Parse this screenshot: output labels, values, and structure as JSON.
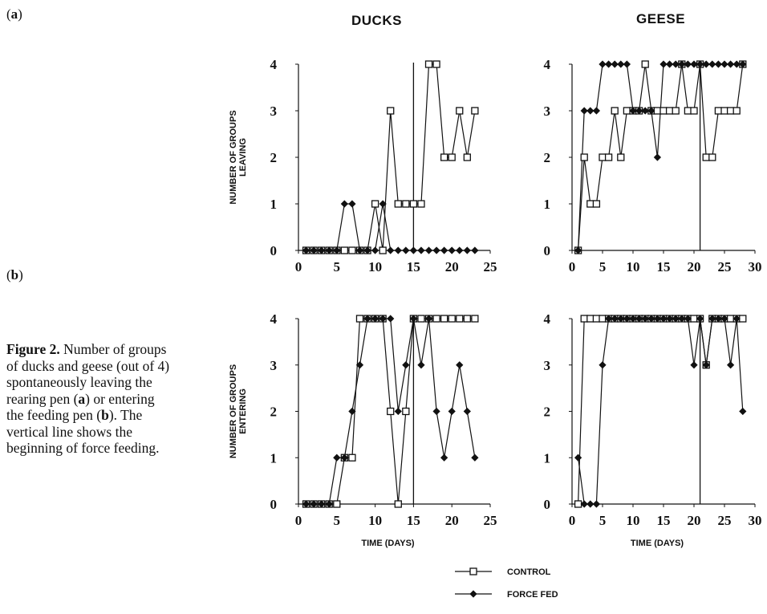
{
  "panel_labels": {
    "a": "a",
    "b": "b"
  },
  "column_titles": {
    "ducks": "DUCKS",
    "geese": "GEESE"
  },
  "caption": {
    "label": "Figure 2.",
    "text_1": " Number of groups of ducks and geese (out of 4) spontaneously leaving the rearing pen (",
    "a": "a",
    "text_2": ") or entering the feeding pen (",
    "b": "b",
    "text_3": "). The vertical line shows the beginning of force feeding."
  },
  "legend": [
    {
      "name": "CONTROL",
      "marker": "open-square"
    },
    {
      "name": "FORCE FED",
      "marker": "filled-diamond"
    }
  ],
  "colors": {
    "ink": "#111111",
    "marker_fill_open": "#ffffff"
  },
  "chart_data": [
    {
      "id": "ducks-leaving",
      "type": "line",
      "ylabel": "NUMBER OF GROUPS LEAVING",
      "xlabel": "",
      "xlim": [
        0,
        25
      ],
      "ylim": [
        0,
        4
      ],
      "xticks": [
        0,
        5,
        10,
        15,
        20,
        25
      ],
      "yticks": [
        0,
        1,
        2,
        3,
        4
      ],
      "start_force_feeding": 15,
      "series": [
        {
          "name": "CONTROL",
          "x": [
            1,
            2,
            3,
            4,
            5,
            6,
            7,
            8,
            9,
            10,
            11,
            12,
            13,
            14,
            15,
            16,
            17,
            18,
            19,
            20,
            21,
            22,
            23
          ],
          "y": [
            0,
            0,
            0,
            0,
            0,
            0,
            0,
            0,
            0,
            1,
            0,
            3,
            1,
            1,
            1,
            1,
            4,
            4,
            2,
            2,
            3,
            2,
            3
          ]
        },
        {
          "name": "FORCE FED",
          "x": [
            1,
            2,
            3,
            4,
            5,
            6,
            7,
            8,
            9,
            10,
            11,
            12,
            13,
            14,
            15,
            16,
            17,
            18,
            19,
            20,
            21,
            22,
            23
          ],
          "y": [
            0,
            0,
            0,
            0,
            0,
            1,
            1,
            0,
            0,
            0,
            1,
            0,
            0,
            0,
            0,
            0,
            0,
            0,
            0,
            0,
            0,
            0,
            0
          ]
        }
      ]
    },
    {
      "id": "geese-leaving",
      "type": "line",
      "ylabel": "",
      "xlabel": "",
      "xlim": [
        0,
        30
      ],
      "ylim": [
        0,
        4
      ],
      "xticks": [
        0,
        5,
        10,
        15,
        20,
        25,
        30
      ],
      "yticks": [
        0,
        1,
        2,
        3,
        4
      ],
      "start_force_feeding": 21,
      "series": [
        {
          "name": "CONTROL",
          "x": [
            1,
            2,
            3,
            4,
            5,
            6,
            7,
            8,
            9,
            10,
            11,
            12,
            13,
            14,
            15,
            16,
            17,
            18,
            19,
            20,
            21,
            22,
            23,
            24,
            25,
            26,
            27,
            28
          ],
          "y": [
            0,
            2,
            1,
            1,
            2,
            2,
            3,
            2,
            3,
            3,
            3,
            4,
            3,
            3,
            3,
            3,
            3,
            4,
            3,
            3,
            4,
            2,
            2,
            3,
            3,
            3,
            3,
            4
          ]
        },
        {
          "name": "FORCE FED",
          "x": [
            1,
            2,
            3,
            4,
            5,
            6,
            7,
            8,
            9,
            10,
            11,
            12,
            13,
            14,
            15,
            16,
            17,
            18,
            19,
            20,
            21,
            22,
            23,
            24,
            25,
            26,
            27,
            28
          ],
          "y": [
            0,
            3,
            3,
            3,
            4,
            4,
            4,
            4,
            4,
            3,
            3,
            3,
            3,
            2,
            4,
            4,
            4,
            4,
            4,
            4,
            4,
            4,
            4,
            4,
            4,
            4,
            4,
            4
          ]
        }
      ]
    },
    {
      "id": "ducks-entering",
      "type": "line",
      "ylabel": "NUMBER OF GROUPS ENTERING",
      "xlabel": "TIME (DAYS)",
      "xlim": [
        0,
        25
      ],
      "ylim": [
        0,
        4
      ],
      "xticks": [
        0,
        5,
        10,
        15,
        20,
        25
      ],
      "yticks": [
        0,
        1,
        2,
        3,
        4
      ],
      "start_force_feeding": 15,
      "series": [
        {
          "name": "CONTROL",
          "x": [
            1,
            2,
            3,
            4,
            5,
            6,
            7,
            8,
            9,
            10,
            11,
            12,
            13,
            14,
            15,
            16,
            17,
            18,
            19,
            20,
            21,
            22,
            23
          ],
          "y": [
            0,
            0,
            0,
            0,
            0,
            1,
            1,
            4,
            4,
            4,
            4,
            2,
            0,
            2,
            4,
            4,
            4,
            4,
            4,
            4,
            4,
            4,
            4
          ]
        },
        {
          "name": "FORCE FED",
          "x": [
            1,
            2,
            3,
            4,
            5,
            6,
            7,
            8,
            9,
            10,
            11,
            12,
            13,
            14,
            15,
            16,
            17,
            18,
            19,
            20,
            21,
            22,
            23
          ],
          "y": [
            0,
            0,
            0,
            0,
            1,
            1,
            2,
            3,
            4,
            4,
            4,
            4,
            2,
            3,
            4,
            3,
            4,
            2,
            1,
            2,
            3,
            2,
            1
          ]
        }
      ]
    },
    {
      "id": "geese-entering",
      "type": "line",
      "ylabel": "",
      "xlabel": "TIME (DAYS)",
      "xlim": [
        0,
        30
      ],
      "ylim": [
        0,
        4
      ],
      "xticks": [
        0,
        5,
        10,
        15,
        20,
        25,
        30
      ],
      "yticks": [
        0,
        1,
        2,
        3,
        4
      ],
      "start_force_feeding": 21,
      "series": [
        {
          "name": "CONTROL",
          "x": [
            1,
            2,
            3,
            4,
            5,
            6,
            7,
            8,
            9,
            10,
            11,
            12,
            13,
            14,
            15,
            16,
            17,
            18,
            19,
            20,
            21,
            22,
            23,
            24,
            25,
            26,
            27,
            28
          ],
          "y": [
            0,
            4,
            4,
            4,
            4,
            4,
            4,
            4,
            4,
            4,
            4,
            4,
            4,
            4,
            4,
            4,
            4,
            4,
            4,
            4,
            4,
            3,
            4,
            4,
            4,
            4,
            4,
            4
          ]
        },
        {
          "name": "FORCE FED",
          "x": [
            1,
            2,
            3,
            4,
            5,
            6,
            7,
            8,
            9,
            10,
            11,
            12,
            13,
            14,
            15,
            16,
            17,
            18,
            19,
            20,
            21,
            22,
            23,
            24,
            25,
            26,
            27,
            28
          ],
          "y": [
            1,
            0,
            0,
            0,
            3,
            4,
            4,
            4,
            4,
            4,
            4,
            4,
            4,
            4,
            4,
            4,
            4,
            4,
            4,
            3,
            4,
            3,
            4,
            4,
            4,
            3,
            4,
            2
          ]
        }
      ]
    }
  ]
}
